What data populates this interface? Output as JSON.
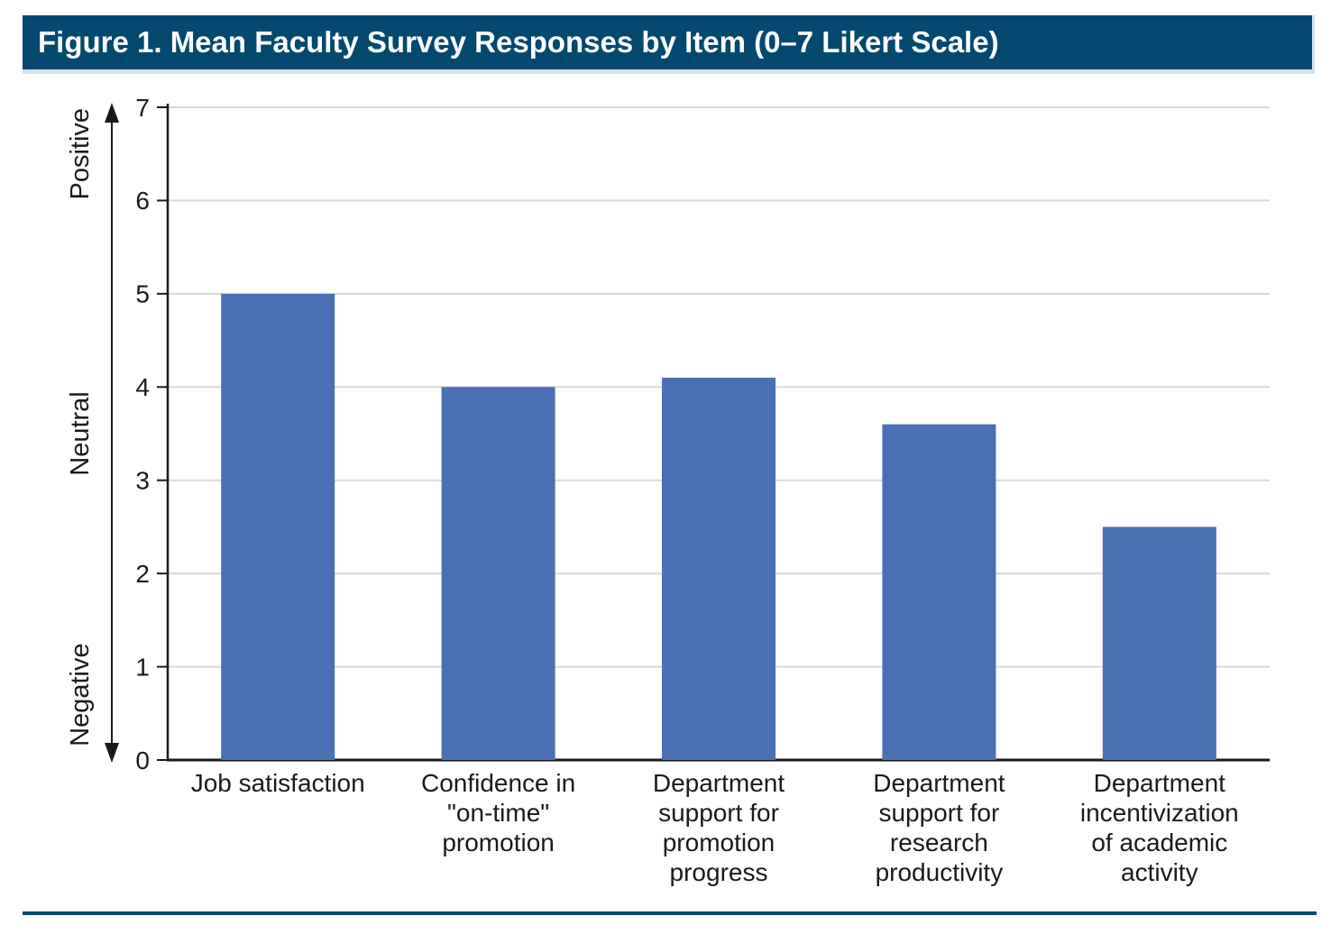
{
  "figure": {
    "title": "Figure 1. Mean Faculty Survey Responses by Item (0–7 Likert Scale)"
  },
  "chart_data": {
    "type": "bar",
    "title": "Figure 1. Mean Faculty Survey Responses by Item (0–7 Likert Scale)",
    "categories": [
      "Job satisfaction",
      "Confidence in \"on-time\" promotion",
      "Department support for promotion progress",
      "Department support for research productivity",
      "Department incentivization of academic activity"
    ],
    "category_label_lines": [
      [
        "Job satisfaction"
      ],
      [
        "Confidence in",
        "\"on-time\"",
        "promotion"
      ],
      [
        "Department",
        "support for",
        "promotion",
        "progress"
      ],
      [
        "Department",
        "support for",
        "research",
        "productivity"
      ],
      [
        "Department",
        "incentivization",
        "of academic",
        "activity"
      ]
    ],
    "values": [
      5.0,
      4.0,
      4.1,
      3.6,
      2.5
    ],
    "xlabel": "",
    "ylabel": "",
    "ylim": [
      0,
      7
    ],
    "yticks": [
      0,
      1,
      2,
      3,
      4,
      5,
      6,
      7
    ],
    "grid": "horizontal",
    "legend": "none",
    "axis_annotations": [
      {
        "label": "Positive",
        "position": "top"
      },
      {
        "label": "Neutral",
        "position": "middle"
      },
      {
        "label": "Negative",
        "position": "bottom"
      }
    ]
  },
  "colors": {
    "header_bg": "#02486F",
    "header_trim": "#CFE2EE",
    "title_text": "#FFFFFF",
    "bar_fill": "#4A70B4",
    "grid": "#D9D9D9",
    "axis": "#1A1A1A",
    "tick_text": "#1A1A1A",
    "rule": "#0C4A73"
  }
}
